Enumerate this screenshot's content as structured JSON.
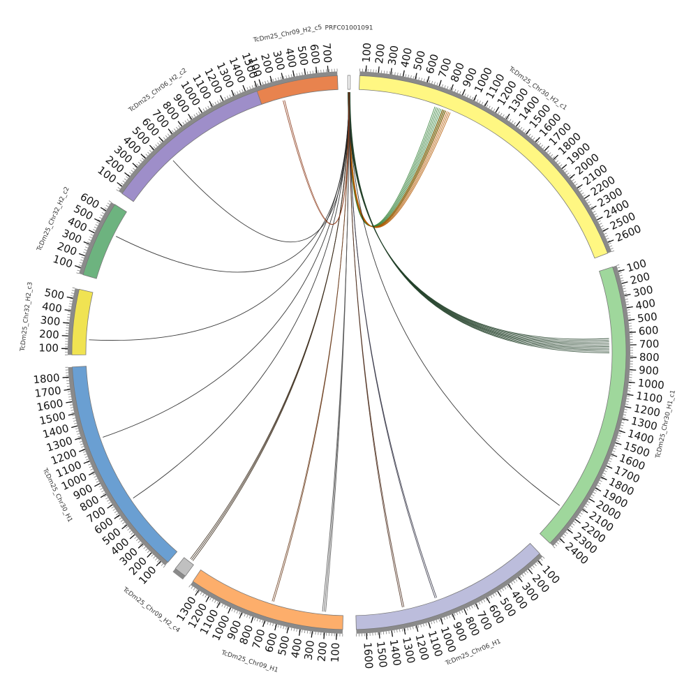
{
  "diagram": {
    "segments": [
      {
        "id": "PRFC01001091",
        "label": "PRFC01001091",
        "color": "#ffffff",
        "ticks": [],
        "startDeg": -0.25,
        "endDeg": 0.25
      },
      {
        "id": "TcDm25_Chr30_H2_c1",
        "label": "TcDm25_Chr30_H2_c1",
        "color": "#fff782",
        "ticks": [
          "100",
          "200",
          "300",
          "400",
          "500",
          "600",
          "700",
          "800",
          "900",
          "1000",
          "1100",
          "1200",
          "1300",
          "1400",
          "1500",
          "1600",
          "1700",
          "1800",
          "1900",
          "2000",
          "2100",
          "2200",
          "2300",
          "2400",
          "2500",
          "2600"
        ],
        "startDeg": 2.2,
        "endDeg": 69.0
      },
      {
        "id": "TcDm25_Chr30_H1_c1",
        "label": "TcDm25_Chr30_H1_c1",
        "color": "#9fd79c",
        "ticks": [
          "100",
          "200",
          "300",
          "400",
          "500",
          "600",
          "700",
          "800",
          "900",
          "1000",
          "1100",
          "1200",
          "1300",
          "1400",
          "1500",
          "1600",
          "1700",
          "1800",
          "1900",
          "2000",
          "2100",
          "2200",
          "2300",
          "2400"
        ],
        "startDeg": 72.0,
        "endDeg": 133.5
      },
      {
        "id": "TcDm25_Chr06_H1",
        "label": "TcDm25_Chr06_H1",
        "color": "#bcbddc",
        "ticks": [
          "100",
          "200",
          "300",
          "400",
          "500",
          "600",
          "700",
          "800",
          "900",
          "1000",
          "1100",
          "1200",
          "1300",
          "1400",
          "1500",
          "1600"
        ],
        "startDeg": 136.5,
        "endDeg": 178.5
      },
      {
        "id": "TcDm25_Chr09_H1",
        "label": "TcDm25_Chr09_H1",
        "color": "#fdae6b",
        "ticks": [
          "100",
          "200",
          "300",
          "400",
          "500",
          "600",
          "700",
          "800",
          "900",
          "1000",
          "1100",
          "1200",
          "1300"
        ],
        "startDeg": 181.3,
        "endDeg": 214.3
      },
      {
        "id": "TcDm25_Chr09_H2_c4",
        "label": "TcDm25_Chr09_H2_c4",
        "color": "#c0c0c0",
        "ticks": [],
        "startDeg": 216.2,
        "endDeg": 218.8
      },
      {
        "id": "TcDm25_Chr30_H1",
        "label": "TcDm25_Chr30_H1",
        "color": "#6a9fd2",
        "ticks": [
          "100",
          "200",
          "300",
          "400",
          "500",
          "600",
          "700",
          "800",
          "900",
          "1000",
          "1100",
          "1200",
          "1300",
          "1400",
          "1500",
          "1600",
          "1700",
          "1800"
        ],
        "startDeg": 220.8,
        "endDeg": 267.0
      },
      {
        "id": "TcDm25_Chr32_H2_c3",
        "label": "TcDm25_Chr32_H2_c3",
        "color": "#f0e352",
        "ticks": [
          "100",
          "200",
          "300",
          "400",
          "500"
        ],
        "startDeg": 269.5,
        "endDeg": 283.2
      },
      {
        "id": "TcDm25_Chr32_H2_c2",
        "label": "TcDm25_Chr32_H2_c2",
        "color": "#6db37f",
        "ticks": [
          "100",
          "200",
          "300",
          "400",
          "500",
          "600"
        ],
        "startDeg": 286.3,
        "endDeg": 302.3
      },
      {
        "id": "TcDm25_Chr06_H2_c2",
        "label": "TcDm25_Chr06_H2_c2",
        "color": "#9e8ec9",
        "ticks": [
          "100",
          "200",
          "300",
          "400",
          "500",
          "600",
          "700",
          "800",
          "900",
          "1000",
          "1100",
          "1200",
          "1300",
          "1400",
          "1500"
        ],
        "startDeg": 305.0,
        "endDeg": 342.8
      },
      {
        "id": "TcDm25_Chr09_H2_c5",
        "label": "TcDm25_Chr09_H2_c5",
        "color": "#e8834e",
        "ticks": [
          "100",
          "200",
          "300",
          "400",
          "500",
          "600",
          "700"
        ],
        "startDeg": 340.6,
        "endDeg": 357.6
      }
    ],
    "links": [
      {
        "from": "PRFC01001091",
        "to": "TcDm25_Chr30_H2_c1",
        "fromDeg": 0,
        "toDeg": 20.5,
        "color": "#2e7d32",
        "count": 8
      },
      {
        "from": "PRFC01001091",
        "to": "TcDm25_Chr30_H2_c1",
        "fromDeg": 0,
        "toDeg": 22.0,
        "color": "#b35900",
        "count": 6
      },
      {
        "from": "PRFC01001091",
        "to": "TcDm25_Chr30_H1_c1",
        "fromDeg": 0,
        "toDeg": 88.5,
        "color": "#24412a",
        "count": 10
      },
      {
        "from": "PRFC01001091",
        "to": "TcDm25_Chr30_H1_c1",
        "fromDeg": 0,
        "toDeg": 126.0,
        "color": "#222222",
        "count": 1
      },
      {
        "from": "PRFC01001091",
        "to": "TcDm25_Chr06_H1",
        "fromDeg": 0,
        "toDeg": 160.5,
        "color": "#333344",
        "count": 2
      },
      {
        "from": "PRFC01001091",
        "to": "TcDm25_Chr06_H1",
        "fromDeg": 0,
        "toDeg": 168.0,
        "color": "#4a2a1a",
        "count": 2
      },
      {
        "from": "PRFC01001091",
        "to": "TcDm25_Chr09_H1",
        "fromDeg": 0,
        "toDeg": 185.5,
        "color": "#555555",
        "count": 3
      },
      {
        "from": "PRFC01001091",
        "to": "TcDm25_Chr09_H1",
        "fromDeg": 0,
        "toDeg": 197.0,
        "color": "#6b3d1d",
        "count": 2
      },
      {
        "from": "PRFC01001091",
        "to": "TcDm25_Chr09_H2_c4",
        "fromDeg": 0,
        "toDeg": 217.2,
        "color": "#3a2a1a",
        "count": 3
      },
      {
        "from": "PRFC01001091",
        "to": "TcDm25_Chr30_H1",
        "fromDeg": 0,
        "toDeg": 236.0,
        "color": "#222222",
        "count": 1
      },
      {
        "from": "PRFC01001091",
        "to": "TcDm25_Chr30_H1",
        "fromDeg": 0,
        "toDeg": 251.0,
        "color": "#222222",
        "count": 1
      },
      {
        "from": "PRFC01001091",
        "to": "TcDm25_Chr32_H2_c3",
        "fromDeg": 0,
        "toDeg": 272.8,
        "color": "#222222",
        "count": 1
      },
      {
        "from": "PRFC01001091",
        "to": "TcDm25_Chr32_H2_c2",
        "fromDeg": 0,
        "toDeg": 296.5,
        "color": "#222222",
        "count": 1
      },
      {
        "from": "PRFC01001091",
        "to": "TcDm25_Chr06_H2_c2",
        "fromDeg": 0,
        "toDeg": 317.5,
        "color": "#222222",
        "count": 1
      },
      {
        "from": "PRFC01001091",
        "to": "TcDm25_Chr09_H2_c5",
        "fromDeg": 0,
        "toDeg": 345.5,
        "color": "#8b3a1a",
        "count": 2
      }
    ]
  }
}
